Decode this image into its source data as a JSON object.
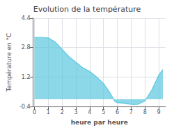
{
  "chart_data": {
    "type": "area",
    "title": "Evolution de la température",
    "x_label": "heure par heure",
    "y_label": "Température en °C",
    "x": [
      0,
      0.5,
      1.0,
      1.5,
      2.0,
      2.5,
      3.0,
      3.5,
      4.0,
      4.5,
      5.0,
      5.5,
      5.8,
      6.0,
      6.5,
      7.0,
      7.2,
      7.5,
      8.0,
      8.5,
      9.0,
      9.3
    ],
    "values": [
      3.35,
      3.35,
      3.32,
      3.1,
      2.7,
      2.3,
      2.0,
      1.7,
      1.5,
      1.2,
      0.85,
      0.3,
      -0.1,
      -0.2,
      -0.22,
      -0.28,
      -0.3,
      -0.28,
      -0.1,
      0.5,
      1.3,
      1.6
    ],
    "xlim": [
      -0.1,
      9.5
    ],
    "xticks": [
      0,
      1,
      2,
      3,
      4,
      5,
      6,
      7,
      8,
      9
    ],
    "ylim": [
      -0.4,
      4.4
    ],
    "yticks": [
      -0.4,
      1.2,
      2.8,
      4.4
    ],
    "color": "#5bc8e0",
    "grid": true
  }
}
